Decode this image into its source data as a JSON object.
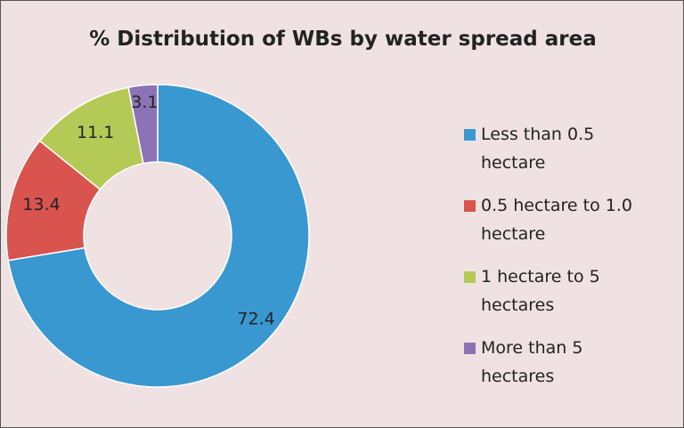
{
  "chart_data": {
    "type": "donut",
    "title": "% Distribution of WBs by water spread area",
    "categories": [
      "Less than 0.5 hectare",
      "0.5 hectare to 1.0 hectare",
      "1 hectare to 5 hectares",
      "More than 5 hectares"
    ],
    "values": [
      72.4,
      13.4,
      11.1,
      3.1
    ],
    "colors": [
      "#3a98d1",
      "#d9534f",
      "#b5c957",
      "#8b73b6"
    ],
    "legend": "right"
  }
}
